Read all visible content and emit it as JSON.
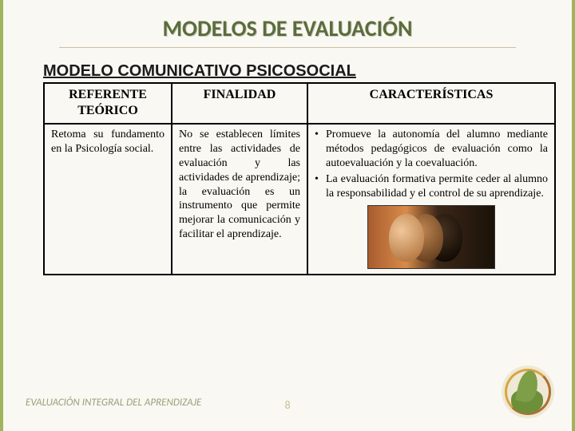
{
  "title": "MODELOS DE EVALUACIÓN",
  "subtitle": "MODELO COMUNICATIVO PSICOSOCIAL",
  "table": {
    "columns": [
      "REFERENTE TEÓRICO",
      "FINALIDAD",
      "CARACTERÍSTICAS"
    ],
    "row": {
      "referente": "Retoma su fundamento en la Psicología social.",
      "finalidad": "No se establecen límites entre las actividades de evaluación y las actividades de aprendizaje; la evaluación es un instrumento que permite mejorar la comunicación y facilitar el aprendizaje.",
      "caracteristicas": [
        "Promueve la autonomía del alumno mediante métodos pedagógicos de evaluación como la autoevaluación y la coevaluación.",
        "La evaluación formativa permite ceder al alumno la responsabilidad y el control de su aprendizaje."
      ]
    }
  },
  "footer": "EVALUACIÓN INTEGRAL DEL APRENDIZAJE",
  "page_number": "8",
  "colors": {
    "title_color": "#5b6d3a",
    "background": "#faf8f2",
    "accent_border": "#9eb55b",
    "footer_text": "#9aa07a"
  },
  "icons": {
    "decorative_image": "three-faces-profile",
    "logo": "green-leaf-hand-circle"
  }
}
